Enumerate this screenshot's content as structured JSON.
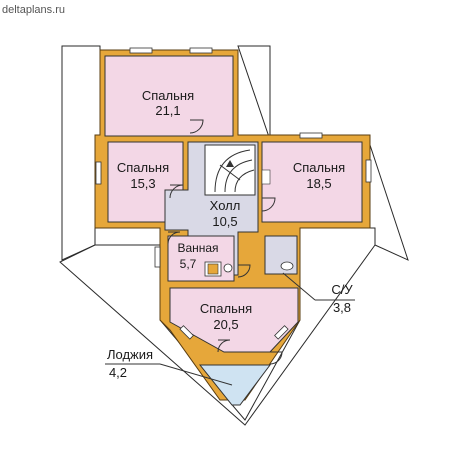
{
  "watermark": "deltaplans.ru",
  "rooms": {
    "bedroom_top": {
      "name": "Спальня",
      "area": "21,1"
    },
    "bedroom_left": {
      "name": "Спальня",
      "area": "15,3"
    },
    "bedroom_right": {
      "name": "Спальня",
      "area": "18,5"
    },
    "hall": {
      "name": "Холл",
      "area": "10,5"
    },
    "bathroom": {
      "name": "Ванная",
      "area": "5,7"
    },
    "wc": {
      "name": "С/У",
      "area": "3,8"
    },
    "bedroom_bottom": {
      "name": "Спальня",
      "area": "20,5"
    },
    "loggia": {
      "name": "Лоджия",
      "area": "4,2"
    }
  },
  "colors": {
    "wall": "#e6a73a",
    "room_fill": "#f3d7e6",
    "hall_fill": "#d9d9e6",
    "loggia_fill": "#cfe3f2"
  }
}
